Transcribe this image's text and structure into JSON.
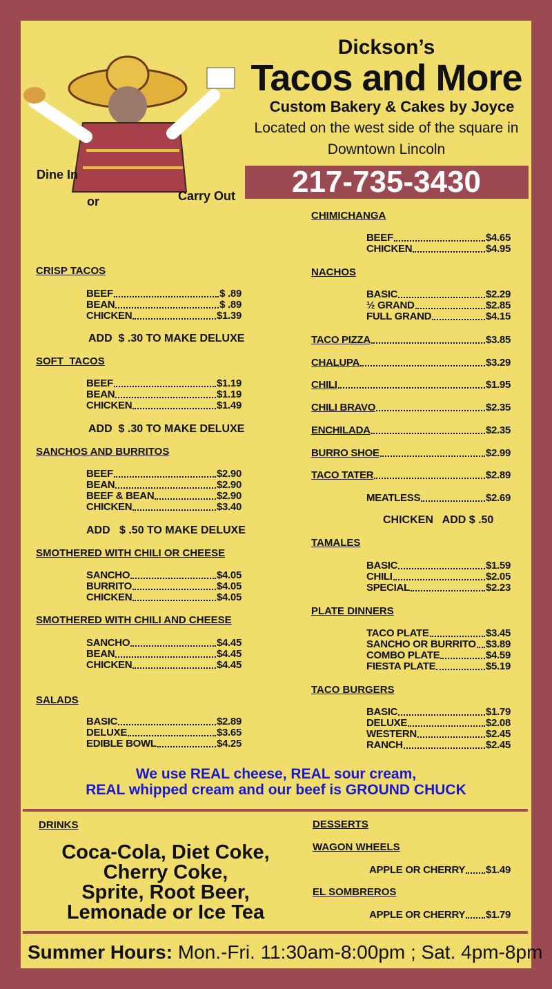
{
  "header": {
    "name": "Dickson’s",
    "title": "Tacos and More",
    "subtitle": "Custom Bakery & Cakes by Joyce",
    "location": [
      "Located on the west side of the square in",
      "Downtown Lincoln"
    ],
    "phone": "217-735-3430",
    "dine_in": "Dine In",
    "or": "or",
    "carry_out": "Carry Out"
  },
  "left_sections": [
    {
      "heading": "CRISP TACOS",
      "items": [
        {
          "name": "BEEF",
          "price": "$ .89"
        },
        {
          "name": "BEAN",
          "price": "$ .89"
        },
        {
          "name": "CHICKEN",
          "price": "$1.39"
        }
      ],
      "note": "ADD  $ .30 TO MAKE DELUXE"
    },
    {
      "heading": "SOFT  TACOS",
      "items": [
        {
          "name": "BEEF",
          "price": "$1.19"
        },
        {
          "name": "BEAN",
          "price": "$1.19"
        },
        {
          "name": "CHICKEN",
          "price": "$1.49"
        }
      ],
      "note": "ADD  $ .30 TO MAKE DELUXE"
    },
    {
      "heading": "SANCHOS AND BURRITOS",
      "items": [
        {
          "name": "BEEF",
          "price": "$2.90"
        },
        {
          "name": "BEAN",
          "price": "$2.90"
        },
        {
          "name": "BEEF & BEAN",
          "price": "$2.90"
        },
        {
          "name": "CHICKEN",
          "price": "$3.40"
        }
      ],
      "note": "ADD   $ .50 TO MAKE DELUXE"
    },
    {
      "heading": "SMOTHERED WITH CHILI OR CHEESE",
      "items": [
        {
          "name": "SANCHO",
          "price": "$4.05"
        },
        {
          "name": "BURRITO",
          "price": "$4.05"
        },
        {
          "name": "CHICKEN",
          "price": "$4.05"
        }
      ]
    },
    {
      "heading": "SMOTHERED WITH CHILI AND CHEESE",
      "items": [
        {
          "name": "SANCHO",
          "price": "$4.45"
        },
        {
          "name": "BEAN",
          "price": "$4.45"
        },
        {
          "name": "CHICKEN",
          "price": "$4.45"
        }
      ]
    },
    {
      "heading": "SALADS",
      "items": [
        {
          "name": "BASIC",
          "price": "$2.89"
        },
        {
          "name": "DELUXE",
          "price": "$3.65"
        },
        {
          "name": "EDIBLE BOWL",
          "price": "$4.25"
        }
      ]
    }
  ],
  "right_sections": [
    {
      "heading": "CHIMICHANGA",
      "items": [
        {
          "name": "BEEF",
          "price": "$4.65"
        },
        {
          "name": "CHICKEN",
          "price": "$4.95"
        }
      ]
    },
    {
      "heading": "NACHOS",
      "items": [
        {
          "name": "BASIC",
          "price": "$2.29"
        },
        {
          "name": "½ GRAND",
          "price": "$2.85"
        },
        {
          "name": "FULL GRAND",
          "price": "$4.15"
        }
      ]
    },
    {
      "heading": "TACO PIZZA",
      "price": "$3.85"
    },
    {
      "heading": "CHALUPA",
      "price": "$3.29"
    },
    {
      "heading": "CHILI",
      "price": "$1.95"
    },
    {
      "heading": "CHILI BRAVO",
      "price": "$2.35"
    },
    {
      "heading": "ENCHILADA",
      "price": "$2.35"
    },
    {
      "heading": "BURRO SHOE",
      "price": "$2.99"
    },
    {
      "heading": "TACO TATER",
      "price": "$2.89",
      "items": [
        {
          "name": "MEATLESS",
          "price": "$2.69"
        }
      ],
      "note": "CHICKEN   ADD $ .50"
    },
    {
      "heading": "TAMALES",
      "items": [
        {
          "name": "BASIC",
          "price": "$1.59"
        },
        {
          "name": "CHILI",
          "price": "$2.05"
        },
        {
          "name": "SPECIAL",
          "price": "$2.23"
        }
      ]
    },
    {
      "heading": "PLATE DINNERS",
      "items": [
        {
          "name": "TACO PLATE",
          "price": "$3.45"
        },
        {
          "name": "SANCHO OR BURRITO",
          "price": "$3.89"
        },
        {
          "name": "COMBO PLATE",
          "price": "$4.59"
        },
        {
          "name": "FIESTA PLATE",
          "price": "$5.19"
        }
      ]
    },
    {
      "heading": "TACO BURGERS",
      "items": [
        {
          "name": "BASIC",
          "price": "$1.79"
        },
        {
          "name": "DELUXE",
          "price": "$2.08"
        },
        {
          "name": "WESTERN",
          "price": "$2.45"
        },
        {
          "name": "RANCH",
          "price": "$2.45"
        }
      ]
    }
  ],
  "quality_note": [
    "We use REAL cheese, REAL sour cream,",
    "REAL whipped cream and our beef is GROUND CHUCK"
  ],
  "drinks": {
    "heading": "DRINKS",
    "lines": [
      "Coca-Cola, Diet Coke,",
      "Cherry Coke,",
      "Sprite, Root Beer,",
      "Lemonade or Ice Tea"
    ]
  },
  "desserts": {
    "heading": "DESSERTS",
    "groups": [
      {
        "name": "WAGON WHEELS",
        "item": "APPLE OR CHERRY",
        "price": "$1.49"
      },
      {
        "name": "EL SOMBREROS",
        "item": "APPLE OR CHERRY",
        "price": "$1.79"
      }
    ]
  },
  "hours": {
    "label": "Summer Hours:",
    "text": "Mon.-Fri. 11:30am-8:00pm ; Sat. 4pm-8pm"
  }
}
